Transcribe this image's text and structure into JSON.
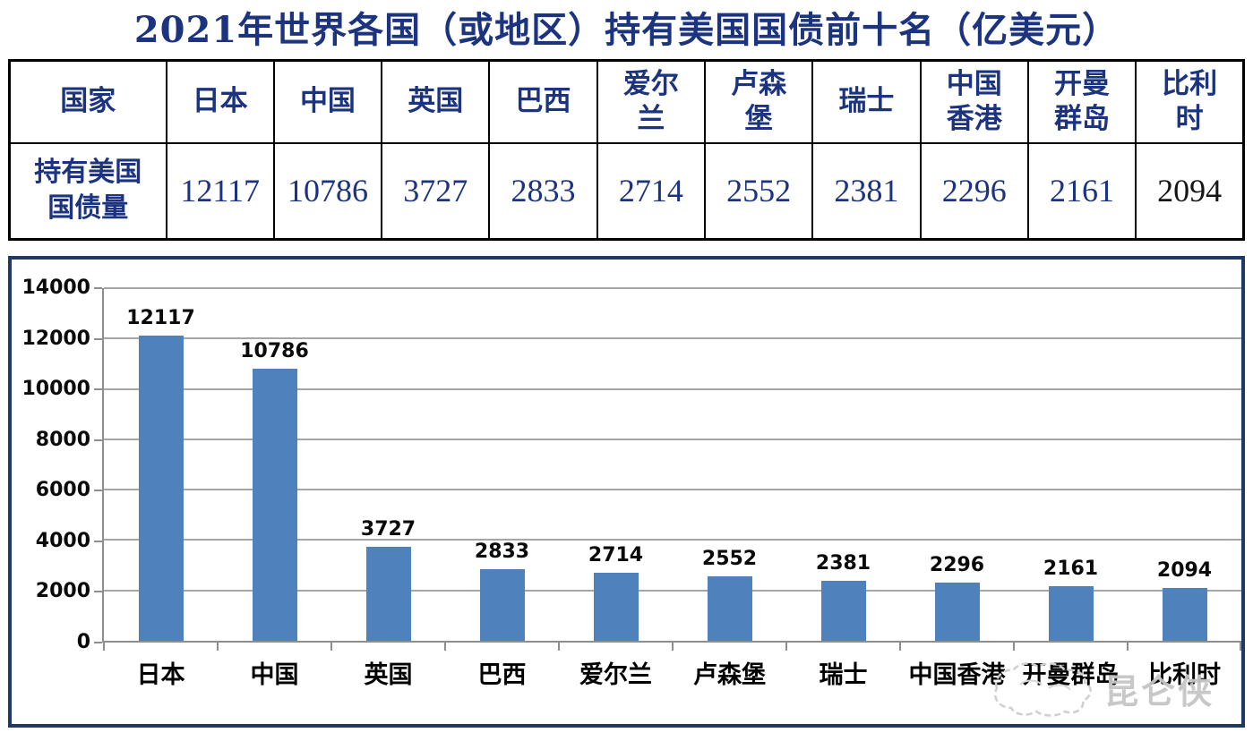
{
  "page_title": "2021年世界各国（或地区）持有美国国债前十名（亿美元）",
  "table": {
    "corner_label": "国家",
    "row_label": "持有美国\n国债量",
    "headers": [
      "日本",
      "中国",
      "英国",
      "巴西",
      "爱尔\n兰",
      "卢森\n堡",
      "瑞士",
      "中国\n香港",
      "开曼\n群岛",
      "比利\n时"
    ],
    "values": [
      "12117",
      "10786",
      "3727",
      "2833",
      "2714",
      "2552",
      "2381",
      "2296",
      "2161",
      "2094"
    ]
  },
  "chart_data": {
    "type": "bar",
    "title": "",
    "categories": [
      "日本",
      "中国",
      "英国",
      "巴西",
      "爱尔兰",
      "卢森堡",
      "瑞士",
      "中国香港",
      "开曼群岛",
      "比利时"
    ],
    "values": [
      12117,
      10786,
      3727,
      2833,
      2714,
      2552,
      2381,
      2296,
      2161,
      2094
    ],
    "xlabel": "",
    "ylabel": "",
    "ylim": [
      0,
      14000
    ],
    "yticks": [
      0,
      2000,
      4000,
      6000,
      8000,
      10000,
      12000,
      14000
    ],
    "grid": true,
    "legend": false,
    "data_labels": true,
    "bar_color": "#4f81bd"
  },
  "watermark": {
    "text": "昆仑侠"
  },
  "colors": {
    "ink-blue": "#1c3480",
    "bar": "#4f81bd",
    "grid": "#a6a6a6",
    "axis": "#8e8e8e",
    "chart-border": "#1f3864",
    "table-border": "#000000",
    "label-ink": "#0a0a0a",
    "watermark": "#c6c6c6",
    "last-value-ink": "#151515"
  }
}
